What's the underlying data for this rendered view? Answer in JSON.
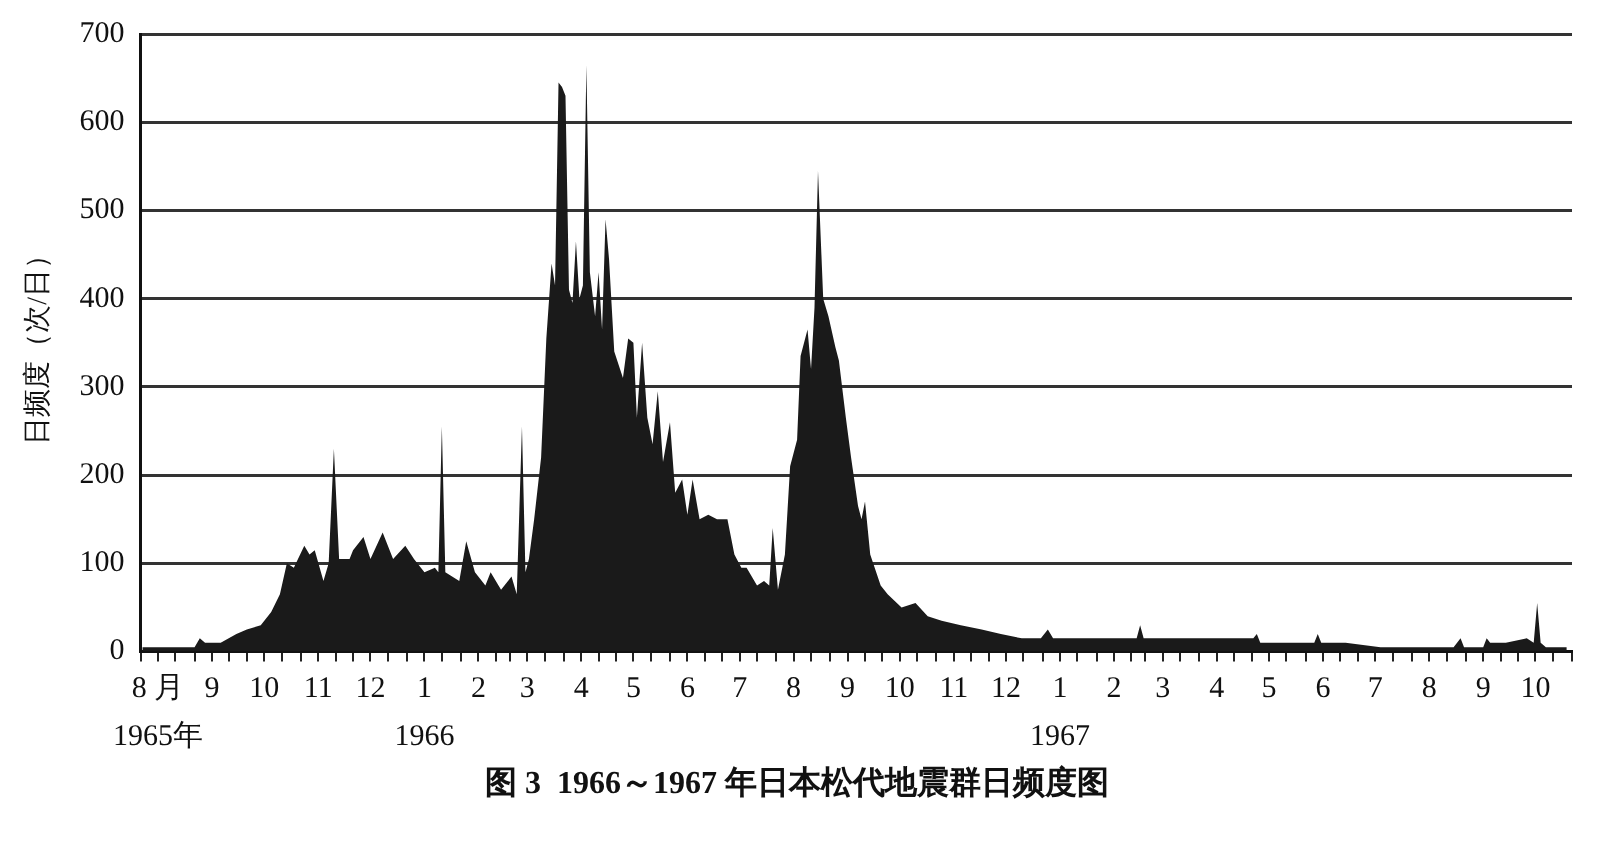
{
  "chart_data": {
    "type": "area",
    "title": "图 3  1966～1967 年日本松代地震群日频度图",
    "ylabel": "日频度（次/日）",
    "color": "#1a1a1a",
    "x": [
      "1965-08-02",
      "1965-08-10",
      "1965-08-24",
      "1965-09-01",
      "1965-09-04",
      "1965-09-07",
      "1965-09-16",
      "1965-09-25",
      "1965-10-01",
      "1965-10-09",
      "1965-10-15",
      "1965-10-20",
      "1965-10-24",
      "1965-10-28",
      "1965-11-03",
      "1965-11-06",
      "1965-11-09",
      "1965-11-14",
      "1965-11-17",
      "1965-11-20",
      "1965-11-23",
      "1965-11-29",
      "1965-12-01",
      "1965-12-07",
      "1965-12-11",
      "1965-12-18",
      "1965-12-24",
      "1965-12-31",
      "1966-01-05",
      "1966-01-11",
      "1966-01-17",
      "1966-01-19",
      "1966-01-21",
      "1966-01-23",
      "1966-01-31",
      "1966-02-04",
      "1966-02-09",
      "1966-02-15",
      "1966-02-18",
      "1966-02-24",
      "1966-03-02",
      "1966-03-05",
      "1966-03-08",
      "1966-03-10",
      "1966-03-12",
      "1966-03-15",
      "1966-03-19",
      "1966-03-22",
      "1966-03-25",
      "1966-03-27",
      "1966-03-29",
      "1966-03-31",
      "1966-04-02",
      "1966-04-04",
      "1966-04-06",
      "1966-04-08",
      "1966-04-10",
      "1966-04-12",
      "1966-04-14",
      "1966-04-16",
      "1966-04-19",
      "1966-04-21",
      "1966-04-23",
      "1966-04-25",
      "1966-04-27",
      "1966-04-30",
      "1966-05-05",
      "1966-05-08",
      "1966-05-11",
      "1966-05-13",
      "1966-05-16",
      "1966-05-19",
      "1966-05-22",
      "1966-05-25",
      "1966-05-28",
      "1966-06-01",
      "1966-06-04",
      "1966-06-08",
      "1966-06-11",
      "1966-06-14",
      "1966-06-18",
      "1966-06-23",
      "1966-06-28",
      "1966-07-04",
      "1966-07-08",
      "1966-07-12",
      "1966-07-15",
      "1966-07-21",
      "1966-07-25",
      "1966-07-28",
      "1966-07-30",
      "1966-08-02",
      "1966-08-06",
      "1966-08-09",
      "1966-08-13",
      "1966-08-15",
      "1966-08-19",
      "1966-08-21",
      "1966-08-23",
      "1966-08-25",
      "1966-08-28",
      "1966-08-31",
      "1966-09-04",
      "1966-09-06",
      "1966-09-10",
      "1966-09-13",
      "1966-09-17",
      "1966-09-19",
      "1966-09-21",
      "1966-09-24",
      "1966-09-30",
      "1966-10-04",
      "1966-10-12",
      "1966-10-20",
      "1966-10-27",
      "1966-11-04",
      "1966-11-15",
      "1966-11-27",
      "1966-12-08",
      "1966-12-20",
      "1966-12-31",
      "1967-01-04",
      "1967-01-07",
      "1967-01-20",
      "1967-02-09",
      "1967-02-24",
      "1967-02-26",
      "1967-02-28",
      "1967-03-06",
      "1967-04-02",
      "1967-04-25",
      "1967-05-02",
      "1967-05-04",
      "1967-05-06",
      "1967-05-15",
      "1967-06-06",
      "1967-06-08",
      "1967-06-10",
      "1967-06-24",
      "1967-07-14",
      "1967-08-25",
      "1967-08-29",
      "1967-08-31",
      "1967-09-11",
      "1967-09-13",
      "1967-09-15",
      "1967-09-24",
      "1967-10-06",
      "1967-10-10",
      "1967-10-12",
      "1967-10-14",
      "1967-10-17",
      "1967-10-29"
    ],
    "values": [
      5,
      5,
      5,
      5,
      15,
      10,
      10,
      20,
      25,
      30,
      45,
      65,
      100,
      95,
      120,
      110,
      115,
      80,
      100,
      230,
      105,
      105,
      115,
      130,
      105,
      135,
      105,
      120,
      105,
      90,
      95,
      90,
      255,
      90,
      80,
      125,
      90,
      75,
      90,
      70,
      85,
      65,
      255,
      90,
      105,
      150,
      220,
      355,
      440,
      415,
      645,
      640,
      630,
      410,
      395,
      465,
      400,
      415,
      665,
      430,
      380,
      430,
      365,
      490,
      445,
      340,
      310,
      355,
      350,
      265,
      350,
      265,
      235,
      295,
      215,
      260,
      180,
      195,
      155,
      195,
      150,
      155,
      150,
      150,
      110,
      95,
      95,
      75,
      80,
      75,
      140,
      70,
      110,
      210,
      240,
      335,
      365,
      320,
      390,
      545,
      400,
      380,
      345,
      330,
      265,
      220,
      165,
      150,
      170,
      110,
      75,
      65,
      50,
      55,
      40,
      35,
      30,
      25,
      20,
      15,
      15,
      25,
      15,
      15,
      15,
      15,
      30,
      15,
      15,
      15,
      15,
      15,
      20,
      10,
      10,
      10,
      20,
      10,
      10,
      5,
      5,
      15,
      5,
      5,
      15,
      10,
      10,
      15,
      10,
      55,
      10,
      5,
      5
    ],
    "xlim": [
      "1965-08-01",
      "1967-11-01"
    ],
    "xticks": [
      {
        "value": "1965-08-01",
        "label": null
      },
      {
        "value": "1965-08-11",
        "label": "8 月\n1965年"
      },
      {
        "value": "1965-08-21",
        "label": null
      },
      {
        "value": "1965-09-01",
        "label": null
      },
      {
        "value": "1965-09-11",
        "label": "9"
      },
      {
        "value": "1965-09-21",
        "label": null
      },
      {
        "value": "1965-10-01",
        "label": null
      },
      {
        "value": "1965-10-11",
        "label": "10"
      },
      {
        "value": "1965-10-21",
        "label": null
      },
      {
        "value": "1965-11-01",
        "label": null
      },
      {
        "value": "1965-11-11",
        "label": "11"
      },
      {
        "value": "1965-11-21",
        "label": null
      },
      {
        "value": "1965-12-01",
        "label": null
      },
      {
        "value": "1965-12-11",
        "label": "12"
      },
      {
        "value": "1965-12-21",
        "label": null
      },
      {
        "value": "1966-01-01",
        "label": null
      },
      {
        "value": "1966-01-11",
        "label": "1\n1966"
      },
      {
        "value": "1966-01-21",
        "label": null
      },
      {
        "value": "1966-02-01",
        "label": null
      },
      {
        "value": "1966-02-11",
        "label": "2"
      },
      {
        "value": "1966-02-21",
        "label": null
      },
      {
        "value": "1966-03-01",
        "label": null
      },
      {
        "value": "1966-03-11",
        "label": "3"
      },
      {
        "value": "1966-03-21",
        "label": null
      },
      {
        "value": "1966-04-01",
        "label": null
      },
      {
        "value": "1966-04-11",
        "label": "4"
      },
      {
        "value": "1966-04-21",
        "label": null
      },
      {
        "value": "1966-05-01",
        "label": null
      },
      {
        "value": "1966-05-11",
        "label": "5"
      },
      {
        "value": "1966-05-21",
        "label": null
      },
      {
        "value": "1966-06-01",
        "label": null
      },
      {
        "value": "1966-06-11",
        "label": "6"
      },
      {
        "value": "1966-06-21",
        "label": null
      },
      {
        "value": "1966-07-01",
        "label": null
      },
      {
        "value": "1966-07-11",
        "label": "7"
      },
      {
        "value": "1966-07-21",
        "label": null
      },
      {
        "value": "1966-08-01",
        "label": null
      },
      {
        "value": "1966-08-11",
        "label": "8"
      },
      {
        "value": "1966-08-21",
        "label": null
      },
      {
        "value": "1966-09-01",
        "label": null
      },
      {
        "value": "1966-09-11",
        "label": "9"
      },
      {
        "value": "1966-09-21",
        "label": null
      },
      {
        "value": "1966-10-01",
        "label": null
      },
      {
        "value": "1966-10-11",
        "label": "10"
      },
      {
        "value": "1966-10-21",
        "label": null
      },
      {
        "value": "1966-11-01",
        "label": null
      },
      {
        "value": "1966-11-11",
        "label": "11"
      },
      {
        "value": "1966-11-21",
        "label": null
      },
      {
        "value": "1966-12-01",
        "label": null
      },
      {
        "value": "1966-12-11",
        "label": "12"
      },
      {
        "value": "1966-12-21",
        "label": null
      },
      {
        "value": "1967-01-01",
        "label": null
      },
      {
        "value": "1967-01-11",
        "label": "1\n1967"
      },
      {
        "value": "1967-01-21",
        "label": null
      },
      {
        "value": "1967-02-01",
        "label": null
      },
      {
        "value": "1967-02-11",
        "label": "2"
      },
      {
        "value": "1967-02-21",
        "label": null
      },
      {
        "value": "1967-03-01",
        "label": null
      },
      {
        "value": "1967-03-11",
        "label": "3"
      },
      {
        "value": "1967-03-21",
        "label": null
      },
      {
        "value": "1967-04-01",
        "label": null
      },
      {
        "value": "1967-04-11",
        "label": "4"
      },
      {
        "value": "1967-04-21",
        "label": null
      },
      {
        "value": "1967-05-01",
        "label": null
      },
      {
        "value": "1967-05-11",
        "label": "5"
      },
      {
        "value": "1967-05-21",
        "label": null
      },
      {
        "value": "1967-06-01",
        "label": null
      },
      {
        "value": "1967-06-11",
        "label": "6"
      },
      {
        "value": "1967-06-21",
        "label": null
      },
      {
        "value": "1967-07-01",
        "label": null
      },
      {
        "value": "1967-07-11",
        "label": "7"
      },
      {
        "value": "1967-07-21",
        "label": null
      },
      {
        "value": "1967-08-01",
        "label": null
      },
      {
        "value": "1967-08-11",
        "label": "8"
      },
      {
        "value": "1967-08-21",
        "label": null
      },
      {
        "value": "1967-09-01",
        "label": null
      },
      {
        "value": "1967-09-11",
        "label": "9"
      },
      {
        "value": "1967-09-21",
        "label": null
      },
      {
        "value": "1967-10-01",
        "label": null
      },
      {
        "value": "1967-10-11",
        "label": "10"
      },
      {
        "value": "1967-10-21",
        "label": null
      },
      {
        "value": "1967-11-01",
        "label": null
      }
    ],
    "ylim": [
      0,
      700
    ],
    "yticks": [
      0,
      100,
      200,
      300,
      400,
      500,
      600,
      700
    ],
    "grid": "y"
  }
}
